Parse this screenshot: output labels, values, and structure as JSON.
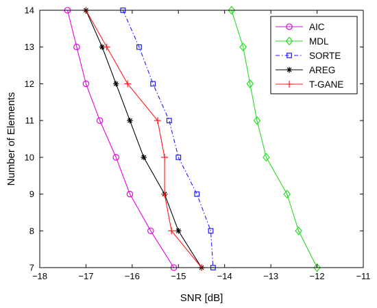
{
  "chart_data": {
    "type": "line",
    "xlabel": "SNR [dB]",
    "ylabel": "Number of Elements",
    "xlim": [
      -18,
      -11
    ],
    "ylim": [
      7,
      14
    ],
    "xticks": [
      -18,
      -17,
      -16,
      -15,
      -14,
      -13,
      -12,
      -11
    ],
    "yticks": [
      7,
      8,
      9,
      10,
      11,
      12,
      13,
      14
    ],
    "grid": false,
    "legend_position": "top-right",
    "series": [
      {
        "name": "AIC",
        "color": "#e600e6",
        "marker": "circle",
        "dash": "solid",
        "points": [
          [
            -17.4,
            14
          ],
          [
            -17.2,
            13
          ],
          [
            -17.0,
            12
          ],
          [
            -16.7,
            11
          ],
          [
            -16.35,
            10
          ],
          [
            -16.05,
            9
          ],
          [
            -15.6,
            8
          ],
          [
            -15.1,
            7
          ]
        ]
      },
      {
        "name": "MDL",
        "color": "#22dd22",
        "marker": "diamond",
        "dash": "solid",
        "points": [
          [
            -13.85,
            14
          ],
          [
            -13.6,
            13
          ],
          [
            -13.45,
            12
          ],
          [
            -13.3,
            11
          ],
          [
            -13.1,
            10
          ],
          [
            -12.65,
            9
          ],
          [
            -12.4,
            8
          ],
          [
            -12.0,
            7
          ]
        ]
      },
      {
        "name": "SORTE",
        "color": "#1a1aff",
        "marker": "square",
        "dash": "dashdot",
        "points": [
          [
            -16.2,
            14
          ],
          [
            -15.85,
            13
          ],
          [
            -15.55,
            12
          ],
          [
            -15.2,
            11
          ],
          [
            -15.0,
            10
          ],
          [
            -14.6,
            9
          ],
          [
            -14.3,
            8
          ],
          [
            -14.25,
            7
          ]
        ]
      },
      {
        "name": "AREG",
        "color": "#000000",
        "marker": "asterisk",
        "dash": "solid",
        "points": [
          [
            -17.0,
            14
          ],
          [
            -16.65,
            13
          ],
          [
            -16.35,
            12
          ],
          [
            -16.05,
            11
          ],
          [
            -15.75,
            10
          ],
          [
            -15.3,
            9
          ],
          [
            -15.0,
            8
          ],
          [
            -14.5,
            7
          ]
        ]
      },
      {
        "name": "T-GANE",
        "color": "#ff1a1a",
        "marker": "plus",
        "dash": "solid",
        "points": [
          [
            -17.0,
            14
          ],
          [
            -16.55,
            13
          ],
          [
            -16.1,
            12
          ],
          [
            -15.45,
            11
          ],
          [
            -15.3,
            10
          ],
          [
            -15.3,
            9
          ],
          [
            -15.15,
            8
          ],
          [
            -14.5,
            7
          ]
        ]
      }
    ]
  }
}
